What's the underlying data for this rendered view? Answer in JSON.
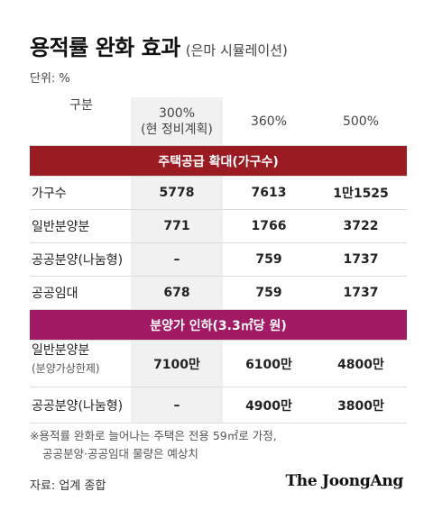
{
  "title": "용적률 완화 효과",
  "subtitle": "(은마 시뮬레이션)",
  "unit": "단위: %",
  "header": {
    "label": "구분",
    "col1_line1": "300%",
    "col1_line2": "(현 정비계획)",
    "col2": "360%",
    "col3": "500%"
  },
  "section1": {
    "title": "주택공급 확대(가구수)",
    "color": "#9b1b22",
    "rows": [
      {
        "label": "가구수",
        "v1": "5778",
        "v2": "7613",
        "v3": "1만1525"
      },
      {
        "label": "일반분양분",
        "v1": "771",
        "v2": "1766",
        "v3": "3722"
      },
      {
        "label": "공공분양(나눔형)",
        "v1": "–",
        "v2": "759",
        "v3": "1737"
      },
      {
        "label": "공공임대",
        "v1": "678",
        "v2": "759",
        "v3": "1737"
      }
    ]
  },
  "section2": {
    "title": "분양가 인하(3.3㎡당 원)",
    "color": "#a31a64",
    "row1": {
      "label": "일반분양분",
      "sublabel": "(분양가상한제)",
      "v1": "7100만",
      "v2": "6100만",
      "v3": "4800만"
    },
    "row2": {
      "label": "공공분양(나눔형)",
      "v1": "–",
      "v2": "4900만",
      "v3": "3800만"
    }
  },
  "footnote": {
    "line1": "※용적률 완화로 늘어나는 주택은 전용 59㎡로 가정,",
    "line2": "공공분양·공공임대 물량은 예상치"
  },
  "source": "자료: 업계 종합",
  "logo": "The JoongAng"
}
